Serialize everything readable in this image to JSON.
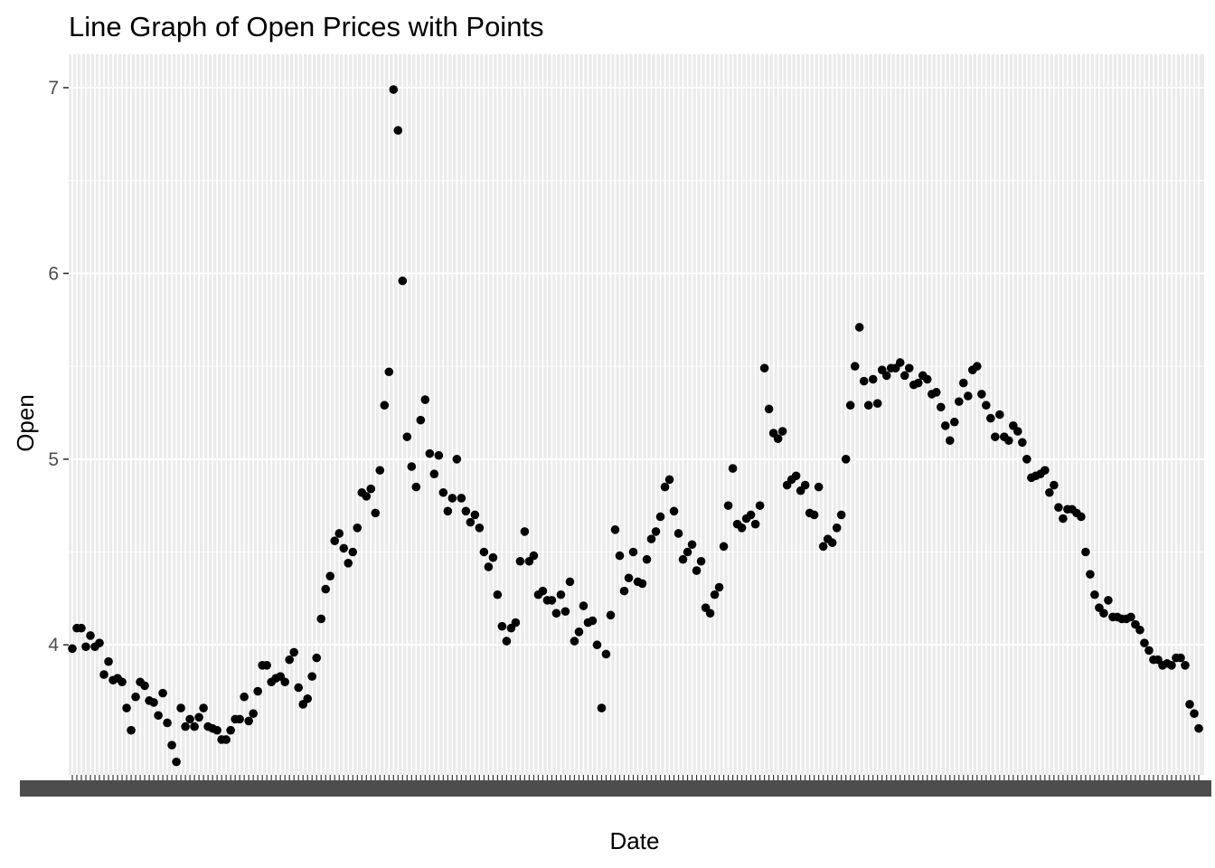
{
  "chart_data": {
    "type": "scatter",
    "title": "Line Graph of Open Prices with Points",
    "xlabel": "Date",
    "ylabel": "Open",
    "x_is_discrete_dates": true,
    "x_tick_labels_note": "overlapping and illegible",
    "ylim": [
      3.3,
      7.18
    ],
    "y_ticks": [
      4,
      5,
      6,
      7
    ],
    "y_tick_labels": [
      "4",
      "5",
      "6",
      "7"
    ],
    "grid": true,
    "theme_colors": {
      "panel": "#ebebeb",
      "grid": "#ffffff",
      "point": "#000000",
      "tick_text": "#4d4d4d"
    },
    "series": [
      {
        "values": [
          3.98,
          4.09,
          4.09,
          3.99,
          4.05,
          3.99,
          4.01,
          3.84,
          3.91,
          3.81,
          3.82,
          3.8,
          3.66,
          3.54,
          3.72,
          3.8,
          3.78,
          3.7,
          3.69,
          3.62,
          3.74,
          3.58,
          3.46,
          3.37,
          3.66,
          3.56,
          3.6,
          3.56,
          3.61,
          3.66,
          3.56,
          3.55,
          3.54,
          3.49,
          3.49,
          3.54,
          3.6,
          3.6,
          3.72,
          3.59,
          3.63,
          3.75,
          3.89,
          3.89,
          3.8,
          3.82,
          3.83,
          3.8,
          3.92,
          3.96,
          3.77,
          3.68,
          3.71,
          3.83,
          3.93,
          4.14,
          4.3,
          4.37,
          4.56,
          4.6,
          4.52,
          4.44,
          4.5,
          4.63,
          4.82,
          4.8,
          4.84,
          4.71,
          4.94,
          5.29,
          5.47,
          6.99,
          6.77,
          5.96,
          5.12,
          4.96,
          4.85,
          5.21,
          5.32,
          5.03,
          4.92,
          5.02,
          4.82,
          4.72,
          4.79,
          5.0,
          4.79,
          4.72,
          4.66,
          4.7,
          4.63,
          4.5,
          4.42,
          4.47,
          4.27,
          4.1,
          4.02,
          4.09,
          4.12,
          4.45,
          4.61,
          4.45,
          4.48,
          4.27,
          4.29,
          4.24,
          4.24,
          4.17,
          4.27,
          4.18,
          4.34,
          4.02,
          4.07,
          4.21,
          4.12,
          4.13,
          4.0,
          3.66,
          3.95,
          4.16,
          4.62,
          4.48,
          4.29,
          4.36,
          4.5,
          4.34,
          4.33,
          4.46,
          4.57,
          4.61,
          4.69,
          4.85,
          4.89,
          4.72,
          4.6,
          4.46,
          4.5,
          4.54,
          4.4,
          4.45,
          4.2,
          4.17,
          4.27,
          4.31,
          4.53,
          4.75,
          4.95,
          4.65,
          4.63,
          4.68,
          4.7,
          4.65,
          4.75,
          5.49,
          5.27,
          5.14,
          5.11,
          5.15,
          4.86,
          4.89,
          4.91,
          4.83,
          4.86,
          4.71,
          4.7,
          4.85,
          4.53,
          4.57,
          4.55,
          4.63,
          4.7,
          5.0,
          5.29,
          5.5,
          5.71,
          5.42,
          5.29,
          5.43,
          5.3,
          5.48,
          5.45,
          5.49,
          5.49,
          5.52,
          5.45,
          5.49,
          5.4,
          5.41,
          5.45,
          5.43,
          5.35,
          5.36,
          5.28,
          5.18,
          5.1,
          5.2,
          5.31,
          5.41,
          5.34,
          5.48,
          5.5,
          5.35,
          5.29,
          5.22,
          5.12,
          5.24,
          5.12,
          5.1,
          5.18,
          5.15,
          5.09,
          5.0,
          4.9,
          4.91,
          4.92,
          4.94,
          4.82,
          4.86,
          4.74,
          4.68,
          4.73,
          4.73,
          4.71,
          4.69,
          4.5,
          4.38,
          4.27,
          4.2,
          4.17,
          4.24,
          4.15,
          4.15,
          4.14,
          4.14,
          4.15,
          4.11,
          4.08,
          4.01,
          3.97,
          3.92,
          3.92,
          3.89,
          3.9,
          3.89,
          3.93,
          3.93,
          3.89,
          3.68,
          3.63,
          3.55
        ]
      }
    ]
  }
}
